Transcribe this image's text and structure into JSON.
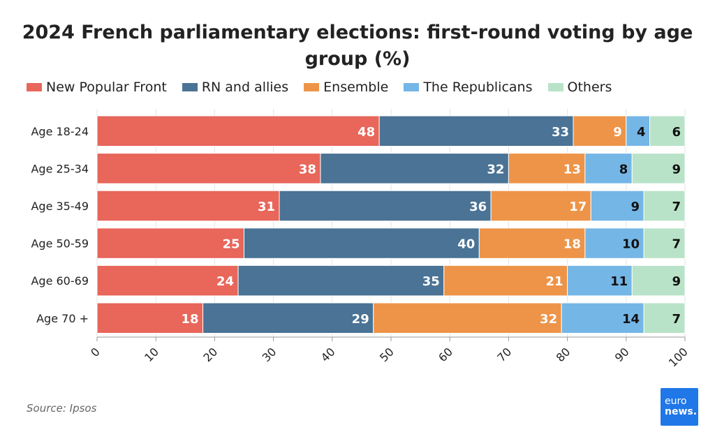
{
  "chart_data": {
    "type": "bar",
    "orientation": "horizontal",
    "stacked": true,
    "title": "2024 French parliamentary elections: first-round voting by age group (%)",
    "categories": [
      "Age 18-24",
      "Age 25-34",
      "Age 35-49",
      "Age 50-59",
      "Age 60-69",
      "Age 70 +"
    ],
    "series": [
      {
        "name": "New Popular Front",
        "color": "#e8665a",
        "values": [
          48,
          38,
          31,
          25,
          24,
          18
        ]
      },
      {
        "name": "RN and allies",
        "color": "#4a7395",
        "values": [
          33,
          32,
          36,
          40,
          35,
          29
        ]
      },
      {
        "name": "Ensemble",
        "color": "#ed9448",
        "values": [
          9,
          13,
          17,
          18,
          21,
          32
        ]
      },
      {
        "name": "The Republicans",
        "color": "#74b6e6",
        "values": [
          4,
          8,
          9,
          10,
          11,
          14
        ]
      },
      {
        "name": "Others",
        "color": "#b9e3c8",
        "values": [
          6,
          9,
          7,
          7,
          9,
          7
        ]
      }
    ],
    "xlim": [
      0,
      100
    ],
    "xticks": [
      0,
      10,
      20,
      30,
      40,
      50,
      60,
      70,
      80,
      90,
      100
    ],
    "legend_position": "top-left",
    "grid": true
  },
  "source": "Source: Ipsos",
  "logo": {
    "line1": "euro",
    "line2": "news."
  }
}
